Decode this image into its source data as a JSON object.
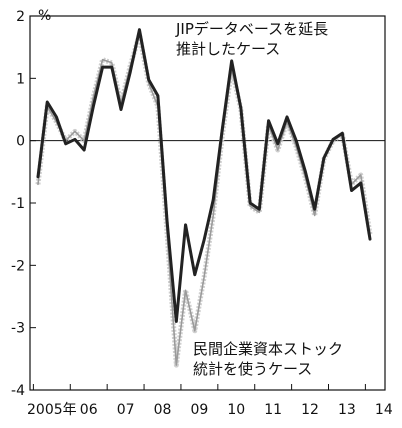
{
  "chart_data": {
    "type": "line",
    "title": "",
    "xlabel": "",
    "ylabel": "%",
    "ylim": [
      -4,
      2
    ],
    "yticks": [
      2,
      1,
      0,
      -1,
      -2,
      -3,
      -4
    ],
    "grid": false,
    "x_tick_labels": [
      "2005年",
      "06",
      "07",
      "08",
      "09",
      "10",
      "11",
      "12",
      "13",
      "14"
    ],
    "annotations": [
      {
        "lines": [
          "JIPデータベースを延長",
          "推計したケース"
        ],
        "series": "jip"
      },
      {
        "lines": [
          "民間企業資本ストック",
          "統計を使うケース"
        ],
        "series": "private"
      }
    ],
    "x_unit": "quarter",
    "x": [
      "2005Q1",
      "2005Q2",
      "2005Q3",
      "2005Q4",
      "2006Q1",
      "2006Q2",
      "2006Q3",
      "2006Q4",
      "2007Q1",
      "2007Q2",
      "2007Q3",
      "2007Q4",
      "2008Q1",
      "2008Q2",
      "2008Q3",
      "2008Q4",
      "2009Q1",
      "2009Q2",
      "2009Q3",
      "2009Q4",
      "2010Q1",
      "2010Q2",
      "2010Q3",
      "2010Q4",
      "2011Q1",
      "2011Q2",
      "2011Q3",
      "2011Q4",
      "2012Q1",
      "2012Q2",
      "2012Q3",
      "2012Q4",
      "2013Q1",
      "2013Q2",
      "2013Q3",
      "2013Q4",
      "2014Q1"
    ],
    "series": [
      {
        "id": "jip",
        "style": "thick-dark",
        "color": "#222222",
        "values": [
          -0.58,
          0.62,
          0.38,
          -0.05,
          0.02,
          -0.15,
          0.55,
          1.18,
          1.18,
          0.5,
          1.1,
          1.78,
          0.98,
          0.72,
          -1.3,
          -2.9,
          -1.35,
          -2.15,
          -1.6,
          -0.95,
          0.2,
          1.28,
          0.52,
          -1.0,
          -1.1,
          0.32,
          -0.05,
          0.38,
          0.0,
          -0.5,
          -1.1,
          -0.28,
          0.02,
          0.12,
          -0.8,
          -0.68,
          -1.58
        ]
      },
      {
        "id": "private",
        "style": "thin-gray",
        "color": "#9a9a9a",
        "values": [
          -0.7,
          0.55,
          0.3,
          0.0,
          0.15,
          0.0,
          0.7,
          1.3,
          1.25,
          0.6,
          1.2,
          1.7,
          0.92,
          0.55,
          -1.5,
          -3.6,
          -2.4,
          -3.05,
          -2.2,
          -1.2,
          0.1,
          1.15,
          0.5,
          -1.05,
          -1.15,
          0.25,
          -0.15,
          0.3,
          -0.1,
          -0.6,
          -1.2,
          -0.3,
          0.0,
          0.1,
          -0.7,
          -0.55,
          -1.5
        ]
      }
    ]
  }
}
